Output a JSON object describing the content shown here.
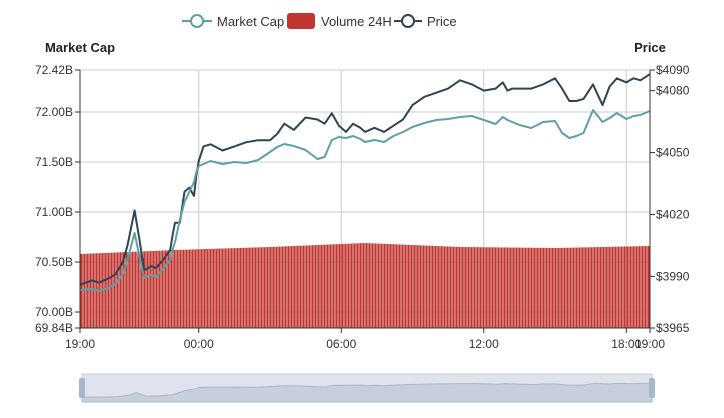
{
  "colors": {
    "market_cap": "#5fa0a6",
    "volume": "#c23531",
    "price": "#2f4554",
    "grid": "#cccccc",
    "axis": "#333333",
    "slider_bg": "#dfe4ec",
    "slider_fill": "#c7cfdc",
    "slider_handle": "#a7b7cc"
  },
  "legend": {
    "market_cap": "Market Cap",
    "volume": "Volume 24H",
    "price": "Price"
  },
  "chart_data": {
    "type": "line",
    "left_axis": {
      "name": "Market Cap",
      "min": 69840000000,
      "max": 72420000000,
      "ticks": [
        69840000000,
        70000000000,
        70500000000,
        71000000000,
        71500000000,
        72000000000,
        72420000000
      ],
      "tick_labels": [
        "69.84B",
        "70.00B",
        "70.50B",
        "71.00B",
        "71.50B",
        "72.00B",
        "72.42B"
      ]
    },
    "right_axis": {
      "name": "Price",
      "min": 3965,
      "max": 4090,
      "ticks": [
        3965,
        3990,
        4020,
        4050,
        4080,
        4090
      ],
      "tick_labels": [
        "$3965",
        "$3990",
        "$4020",
        "$4050",
        "$4080",
        "$4090"
      ]
    },
    "x_axis": {
      "min_hours": 0,
      "max_hours": 24,
      "tick_hours": [
        0,
        5,
        11,
        17,
        23,
        24
      ],
      "tick_labels": [
        "19:00",
        "00:00",
        "06:00",
        "12:00",
        "18:00",
        "19:00"
      ]
    },
    "series": [
      {
        "name": "Price",
        "axis": "right",
        "x_hours": [
          0,
          0.5,
          0.8,
          1.2,
          1.5,
          1.8,
          2,
          2.3,
          2.5,
          2.7,
          3,
          3.2,
          3.5,
          3.8,
          3.9,
          4,
          4.2,
          4.4,
          4.6,
          4.8,
          4.9,
          5,
          5.2,
          5.5,
          6,
          6.5,
          7,
          7.5,
          8,
          8.3,
          8.6,
          9,
          9.5,
          10,
          10.3,
          10.6,
          10.9,
          11.2,
          11.5,
          11.8,
          12,
          12.4,
          12.8,
          13.2,
          13.6,
          14,
          14.5,
          15,
          15.5,
          16,
          16.5,
          17,
          17.5,
          17.8,
          18,
          18.2,
          18.5,
          19,
          19.5,
          20,
          20.3,
          20.6,
          20.9,
          21.2,
          21.6,
          22,
          22.3,
          22.6,
          23,
          23.3,
          23.6,
          24
        ],
        "values": [
          3986,
          3988,
          3987,
          3989,
          3991,
          3997,
          4005,
          4022,
          4008,
          3993,
          3995,
          3994,
          3998,
          4003,
          4010,
          4016,
          4016,
          4031,
          4033,
          4029,
          4039,
          4046,
          4053,
          4054,
          4051,
          4053,
          4055,
          4056,
          4056,
          4059,
          4064,
          4061,
          4067,
          4066,
          4064,
          4069,
          4063,
          4060,
          4064,
          4062,
          4060,
          4062,
          4060,
          4063,
          4066,
          4073,
          4077,
          4079,
          4081,
          4085,
          4083,
          4080,
          4081,
          4084,
          4080,
          4081,
          4081,
          4081,
          4083,
          4086,
          4081,
          4075,
          4075,
          4076,
          4083,
          4073,
          4082,
          4086,
          4084,
          4086,
          4085,
          4088
        ]
      },
      {
        "name": "Market Cap",
        "axis": "left",
        "x_hours": [
          0,
          0.5,
          0.8,
          1.2,
          1.5,
          1.8,
          2,
          2.3,
          2.5,
          2.7,
          3,
          3.2,
          3.5,
          3.8,
          3.9,
          4,
          4.2,
          4.4,
          4.6,
          4.8,
          4.9,
          5,
          5.2,
          5.5,
          6,
          6.5,
          7,
          7.5,
          8,
          8.3,
          8.6,
          9,
          9.5,
          10,
          10.3,
          10.6,
          10.9,
          11.2,
          11.5,
          11.8,
          12,
          12.4,
          12.8,
          13.2,
          13.6,
          14,
          14.5,
          15,
          15.5,
          16,
          16.5,
          17,
          17.5,
          17.8,
          18,
          18.2,
          18.5,
          19,
          19.5,
          20,
          20.3,
          20.6,
          20.9,
          21.2,
          21.6,
          22,
          22.3,
          22.6,
          23,
          23.3,
          23.6,
          24
        ],
        "values": [
          70220000000,
          70230000000,
          70210000000,
          70240000000,
          70280000000,
          70380000000,
          70520000000,
          70790000000,
          70560000000,
          70340000000,
          70370000000,
          70350000000,
          70430000000,
          70520000000,
          70620000000,
          70700000000,
          70920000000,
          71100000000,
          71200000000,
          71300000000,
          71400000000,
          71460000000,
          71480000000,
          71510000000,
          71480000000,
          71500000000,
          71490000000,
          71520000000,
          71600000000,
          71650000000,
          71680000000,
          71660000000,
          71620000000,
          71530000000,
          71550000000,
          71720000000,
          71750000000,
          71740000000,
          71760000000,
          71730000000,
          71700000000,
          71720000000,
          71700000000,
          71760000000,
          71800000000,
          71850000000,
          71890000000,
          71920000000,
          71930000000,
          71950000000,
          71960000000,
          71920000000,
          71880000000,
          71950000000,
          71920000000,
          71900000000,
          71870000000,
          71840000000,
          71900000000,
          71910000000,
          71790000000,
          71740000000,
          71760000000,
          71790000000,
          72020000000,
          71900000000,
          71940000000,
          71990000000,
          71930000000,
          71960000000,
          71970000000,
          72010000000
        ]
      },
      {
        "name": "Volume 24H",
        "axis": "left",
        "type": "bar",
        "x_hours": [
          0,
          4,
          8,
          12,
          16,
          20,
          24
        ],
        "values": [
          70580000000,
          70620000000,
          70650000000,
          70690000000,
          70650000000,
          70640000000,
          70660000000
        ]
      }
    ]
  }
}
